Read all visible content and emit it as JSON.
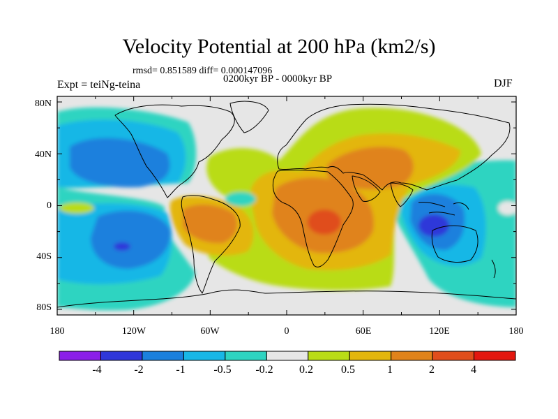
{
  "figure": {
    "title": "Velocity Potential at 200 hPa (km2/s)",
    "stats": "rmsd= 0.851589 diff= 0.000147096",
    "period": "0200kyr BP - 0000kyr BP",
    "experiment": "Expt = teiNg-teina",
    "season": "DJF"
  },
  "axes": {
    "lat_labels": [
      "80N",
      "40N",
      "0",
      "40S",
      "80S"
    ],
    "lon_labels": [
      "180",
      "120W",
      "60W",
      "0",
      "60E",
      "120E",
      "180"
    ]
  },
  "colorbar": {
    "colors": [
      "#8b1ee8",
      "#2f37d9",
      "#1b80dd",
      "#18b7e6",
      "#2ed4c1",
      "#e6e6e6",
      "#b9dc16",
      "#e3b60d",
      "#e0831a",
      "#e04e1c",
      "#e3170f"
    ],
    "labels": [
      "-4",
      "-2",
      "-1",
      "-0.5",
      "-0.2",
      "0.2",
      "0.5",
      "1",
      "2",
      "4"
    ]
  }
}
